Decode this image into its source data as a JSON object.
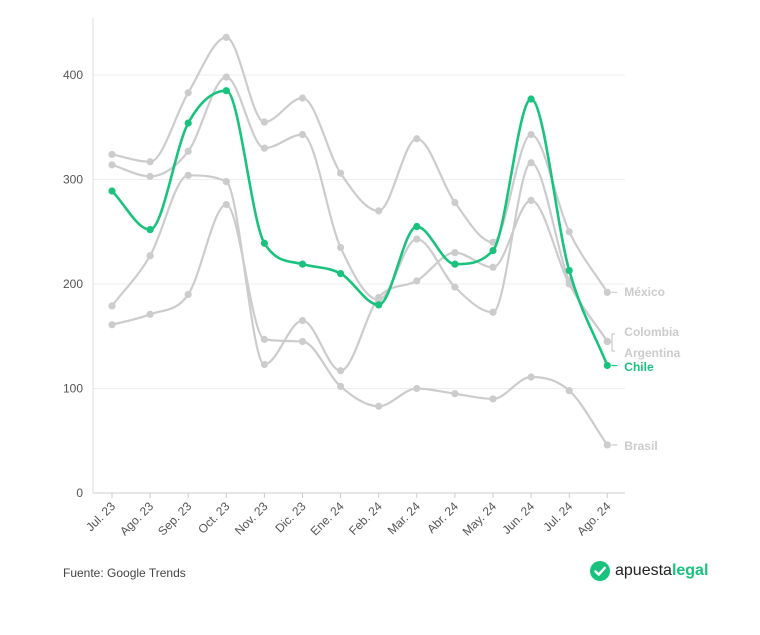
{
  "colors": {
    "highlight": "#19c37d",
    "others": "#cccccc",
    "grid": "#eeeeee",
    "text": "#555555"
  },
  "source_text": "Fuente: Google Trends",
  "brand": {
    "part1": "apuesta",
    "part2": "legal",
    "icon": "check-circle-icon",
    "color": "#19c37d"
  },
  "chart_data": {
    "type": "line",
    "categories": [
      "Jul. 23",
      "Ago. 23",
      "Sep. 23",
      "Oct. 23",
      "Nov. 23",
      "Dic. 23",
      "Ene. 24",
      "Feb. 24",
      "Mar. 24",
      "Abr. 24",
      "May. 24",
      "Jun. 24",
      "Jul. 24",
      "Ago. 24"
    ],
    "y_ticks": [
      "0",
      "100",
      "200",
      "300",
      "400"
    ],
    "ylim": [
      0,
      450
    ],
    "highlight": "Chile",
    "series": [
      {
        "name": "México",
        "values": [
          324,
          317,
          383,
          436,
          355,
          378,
          306,
          270,
          339,
          278,
          240,
          343,
          250,
          192
        ]
      },
      {
        "name": "Colombia",
        "values": [
          314,
          303,
          327,
          398,
          330,
          343,
          235,
          185,
          243,
          197,
          173,
          316,
          203,
          145
        ]
      },
      {
        "name": "Argentina",
        "values": [
          179,
          227,
          304,
          298,
          123,
          165,
          117,
          187,
          203,
          230,
          216,
          280,
          200,
          145
        ]
      },
      {
        "name": "Chile",
        "values": [
          289,
          252,
          354,
          385,
          239,
          219,
          210,
          180,
          255,
          219,
          232,
          377,
          213,
          122
        ]
      },
      {
        "name": "Brasil",
        "values": [
          161,
          171,
          190,
          276,
          147,
          145,
          102,
          83,
          100,
          95,
          90,
          111,
          98,
          46
        ]
      }
    ]
  }
}
